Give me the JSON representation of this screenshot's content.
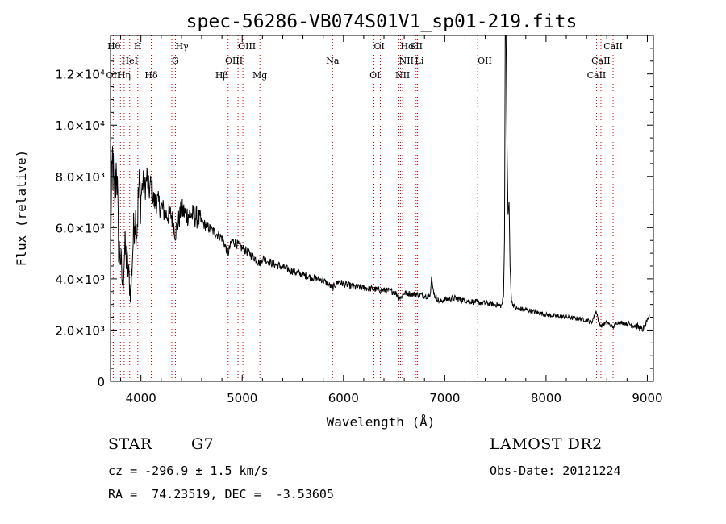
{
  "chart_data": {
    "type": "line",
    "title": "spec-56286-VB074S01V1_sp01-219.fits",
    "xlabel": "Wavelength (Å)",
    "ylabel": "Flux (relative)",
    "xlim": [
      3700,
      9060
    ],
    "ylim": [
      0,
      13500
    ],
    "x_ticks": [
      {
        "value": 4000,
        "label": "4000"
      },
      {
        "value": 5000,
        "label": "5000"
      },
      {
        "value": 6000,
        "label": "6000"
      },
      {
        "value": 7000,
        "label": "7000"
      },
      {
        "value": 8000,
        "label": "8000"
      },
      {
        "value": 9000,
        "label": "9000"
      }
    ],
    "y_ticks": [
      {
        "value": 0,
        "label": "0"
      },
      {
        "value": 2000,
        "label": "2.0×10³"
      },
      {
        "value": 4000,
        "label": "4.0×10³"
      },
      {
        "value": 6000,
        "label": "6.0×10³"
      },
      {
        "value": 8000,
        "label": "8.0×10³"
      },
      {
        "value": 10000,
        "label": "1.0×10⁴"
      },
      {
        "value": 12000,
        "label": "1.2×10⁴"
      }
    ],
    "spectrum_anchors": [
      [
        3700,
        5500
      ],
      [
        3720,
        8700
      ],
      [
        3740,
        6800
      ],
      [
        3760,
        8700
      ],
      [
        3780,
        5300
      ],
      [
        3800,
        4800
      ],
      [
        3820,
        3600
      ],
      [
        3840,
        5200
      ],
      [
        3860,
        4700
      ],
      [
        3880,
        4100
      ],
      [
        3900,
        3400
      ],
      [
        3920,
        5200
      ],
      [
        3940,
        6600
      ],
      [
        3960,
        6000
      ],
      [
        3980,
        7500
      ],
      [
        4000,
        7200
      ],
      [
        4020,
        7800
      ],
      [
        4040,
        7500
      ],
      [
        4060,
        8000
      ],
      [
        4080,
        7400
      ],
      [
        4100,
        7700
      ],
      [
        4130,
        7000
      ],
      [
        4160,
        7000
      ],
      [
        4200,
        6800
      ],
      [
        4250,
        6500
      ],
      [
        4300,
        6500
      ],
      [
        4340,
        5800
      ],
      [
        4400,
        6700
      ],
      [
        4450,
        6500
      ],
      [
        4500,
        6500
      ],
      [
        4550,
        6400
      ],
      [
        4600,
        6200
      ],
      [
        4700,
        5900
      ],
      [
        4800,
        5600
      ],
      [
        4861,
        5000
      ],
      [
        4900,
        5500
      ],
      [
        5000,
        5200
      ],
      [
        5100,
        4900
      ],
      [
        5175,
        4600
      ],
      [
        5200,
        4800
      ],
      [
        5300,
        4600
      ],
      [
        5400,
        4450
      ],
      [
        5500,
        4300
      ],
      [
        5600,
        4150
      ],
      [
        5700,
        4050
      ],
      [
        5800,
        3950
      ],
      [
        5893,
        3650
      ],
      [
        5950,
        3900
      ],
      [
        6000,
        3800
      ],
      [
        6100,
        3700
      ],
      [
        6200,
        3650
      ],
      [
        6300,
        3600
      ],
      [
        6400,
        3550
      ],
      [
        6500,
        3500
      ],
      [
        6563,
        3250
      ],
      [
        6600,
        3450
      ],
      [
        6700,
        3400
      ],
      [
        6800,
        3350
      ],
      [
        6850,
        3300
      ],
      [
        6860,
        3500
      ],
      [
        6870,
        4100
      ],
      [
        6880,
        3700
      ],
      [
        6900,
        3350
      ],
      [
        6950,
        3100
      ],
      [
        7000,
        3200
      ],
      [
        7100,
        3250
      ],
      [
        7200,
        3150
      ],
      [
        7300,
        3100
      ],
      [
        7400,
        3050
      ],
      [
        7500,
        3000
      ],
      [
        7560,
        2950
      ],
      [
        7580,
        3300
      ],
      [
        7590,
        5500
      ],
      [
        7597,
        13800
      ],
      [
        7605,
        13800
      ],
      [
        7615,
        9000
      ],
      [
        7625,
        6500
      ],
      [
        7635,
        7000
      ],
      [
        7645,
        4500
      ],
      [
        7660,
        3100
      ],
      [
        7700,
        2850
      ],
      [
        7800,
        2800
      ],
      [
        7900,
        2700
      ],
      [
        8000,
        2600
      ],
      [
        8100,
        2550
      ],
      [
        8200,
        2500
      ],
      [
        8300,
        2450
      ],
      [
        8400,
        2400
      ],
      [
        8450,
        2300
      ],
      [
        8498,
        2750
      ],
      [
        8520,
        2300
      ],
      [
        8542,
        2150
      ],
      [
        8600,
        2300
      ],
      [
        8662,
        2100
      ],
      [
        8700,
        2300
      ],
      [
        8800,
        2250
      ],
      [
        8900,
        2150
      ],
      [
        8950,
        2000
      ],
      [
        9000,
        2300
      ],
      [
        9020,
        2600
      ]
    ],
    "spectral_lines": [
      {
        "label": "Hθ",
        "x": 3798,
        "row": 0,
        "anchor": "end"
      },
      {
        "label": "H",
        "x": 3969,
        "row": 0,
        "anchor": "middle"
      },
      {
        "label": "Hγ",
        "x": 4341,
        "row": 0,
        "anchor": "start"
      },
      {
        "label": "OIII",
        "x": 4959,
        "row": 0,
        "anchor": "start"
      },
      {
        "label": "OI",
        "x": 6300,
        "row": 0,
        "anchor": "start"
      },
      {
        "label": "Hα",
        "x": 6563,
        "row": 0,
        "anchor": "start"
      },
      {
        "label": "SII",
        "x": 6717,
        "row": 0,
        "anchor": "middle"
      },
      {
        "label": "CaII",
        "x": 8662,
        "row": 0,
        "anchor": "middle"
      },
      {
        "label": "HeI",
        "x": 3889,
        "row": 1,
        "anchor": "middle"
      },
      {
        "label": "G",
        "x": 4305,
        "row": 1,
        "anchor": "start"
      },
      {
        "label": "OIII",
        "x": 5007,
        "row": 1,
        "anchor": "end"
      },
      {
        "label": "Na",
        "x": 5893,
        "row": 1,
        "anchor": "middle"
      },
      {
        "label": "NII",
        "x": 6548,
        "row": 1,
        "anchor": "start"
      },
      {
        "label": "Li",
        "x": 6707,
        "row": 1,
        "anchor": "start"
      },
      {
        "label": "OII",
        "x": 7325,
        "row": 1,
        "anchor": "start"
      },
      {
        "label": "CaII",
        "x": 8542,
        "row": 1,
        "anchor": "middle"
      },
      {
        "label": "OII",
        "x": 3727,
        "row": 2,
        "anchor": "middle"
      },
      {
        "label": "Hη",
        "x": 3835,
        "row": 2,
        "anchor": "middle"
      },
      {
        "label": "Hδ",
        "x": 4102,
        "row": 2,
        "anchor": "middle"
      },
      {
        "label": "Hβ",
        "x": 4861,
        "row": 2,
        "anchor": "end"
      },
      {
        "label": "Mg",
        "x": 5175,
        "row": 2,
        "anchor": "middle"
      },
      {
        "label": "OI",
        "x": 6364,
        "row": 2,
        "anchor": "end"
      },
      {
        "label": "NII",
        "x": 6584,
        "row": 2,
        "anchor": "middle"
      },
      {
        "label": "CaII",
        "x": 8498,
        "row": 2,
        "anchor": "middle"
      }
    ],
    "line_marker_wavelengths": [
      3727,
      3798,
      3835,
      3889,
      3969,
      4102,
      4305,
      4341,
      4861,
      4959,
      5007,
      5175,
      5893,
      6300,
      6364,
      6548,
      6563,
      6584,
      6717,
      6731,
      7325,
      8498,
      8542,
      8662
    ],
    "colors": {
      "spectrum": "#000000",
      "line_markers": "#cc0000",
      "axes": "#000000"
    },
    "grid": false,
    "legend": "none"
  },
  "info": {
    "object_class": "STAR",
    "subclass": "G7",
    "survey": "LAMOST DR2",
    "redshift_text": "cz = -296.9 ± 1.5 km/s",
    "obs_date_text": "Obs-Date: 20121224",
    "coords_text": "RA =  74.23519, DEC =  -3.53605"
  }
}
